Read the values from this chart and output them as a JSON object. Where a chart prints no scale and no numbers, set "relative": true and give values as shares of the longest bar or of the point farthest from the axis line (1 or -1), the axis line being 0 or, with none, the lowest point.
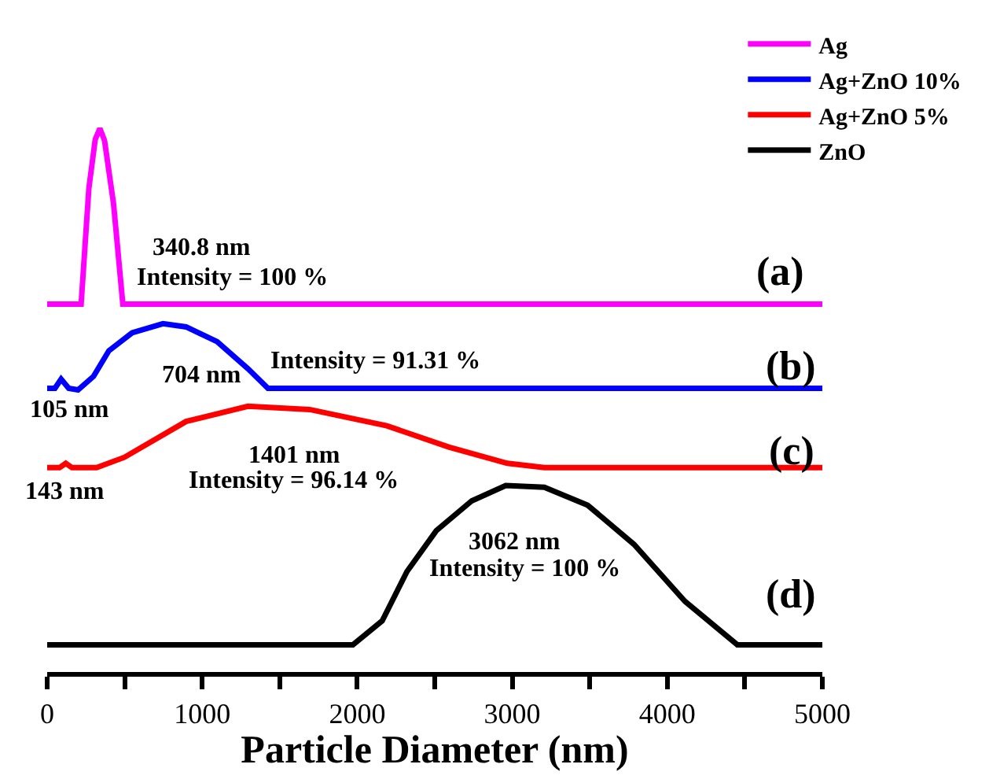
{
  "chart_data": {
    "type": "line",
    "relative": true,
    "xlabel": "Particle Diameter (nm)",
    "xlim": [
      0,
      5000
    ],
    "xticks": [
      0,
      {
        "value": 500,
        "label": null
      },
      1000,
      {
        "value": 1500,
        "label": null
      },
      2000,
      {
        "value": 2500,
        "label": null
      },
      3000,
      {
        "value": 3500,
        "label": null
      },
      4000,
      {
        "value": 4500,
        "label": null
      },
      5000
    ],
    "legend": "top right",
    "marker": "none",
    "line_style": "solid",
    "series": [
      {
        "name": "Ag",
        "color": "#ff00ff",
        "x": [
          0,
          219,
          269,
          310,
          340,
          370,
          428,
          488,
          5000
        ],
        "values": [
          0.677,
          0.677,
          0.89,
          0.98,
          1.0,
          0.978,
          0.862,
          0.677,
          0.677
        ]
      },
      {
        "name": "Ag+ZnO 10%",
        "color": "#0000ff",
        "x": [
          0,
          50,
          90,
          139,
          199,
          299,
          398,
          548,
          747,
          896,
          1096,
          1295,
          1424,
          5000
        ],
        "values": [
          0.522,
          0.522,
          0.539,
          0.522,
          0.519,
          0.544,
          0.591,
          0.624,
          0.641,
          0.635,
          0.608,
          0.558,
          0.522,
          0.522
        ]
      },
      {
        "name": "Ag+ZnO 5%",
        "color": "#ff0000",
        "x": [
          0,
          80,
          120,
          160,
          319,
          498,
          896,
          1295,
          1693,
          2191,
          2590,
          2968,
          3207,
          5000
        ],
        "values": [
          0.376,
          0.376,
          0.384,
          0.376,
          0.376,
          0.395,
          0.461,
          0.489,
          0.483,
          0.453,
          0.414,
          0.384,
          0.376,
          0.376
        ]
      },
      {
        "name": "ZnO",
        "color": "#000000",
        "x": [
          0,
          1972,
          2161,
          2321,
          2510,
          2739,
          2958,
          3207,
          3486,
          3785,
          4114,
          4452,
          5000
        ],
        "values": [
          0.05,
          0.05,
          0.094,
          0.185,
          0.26,
          0.315,
          0.343,
          0.34,
          0.307,
          0.235,
          0.13,
          0.05,
          0.05
        ]
      }
    ],
    "annotations": [
      "340.8 nm",
      "Intensity = 100 %",
      "(a)",
      "704 nm",
      "Intensity = 91.31 %",
      "105 nm",
      "(b)",
      "1401 nm",
      "Intensity = 96.14 %",
      "143 nm",
      "(c)",
      "3062 nm",
      "Intensity = 100 %",
      "(d)"
    ]
  }
}
